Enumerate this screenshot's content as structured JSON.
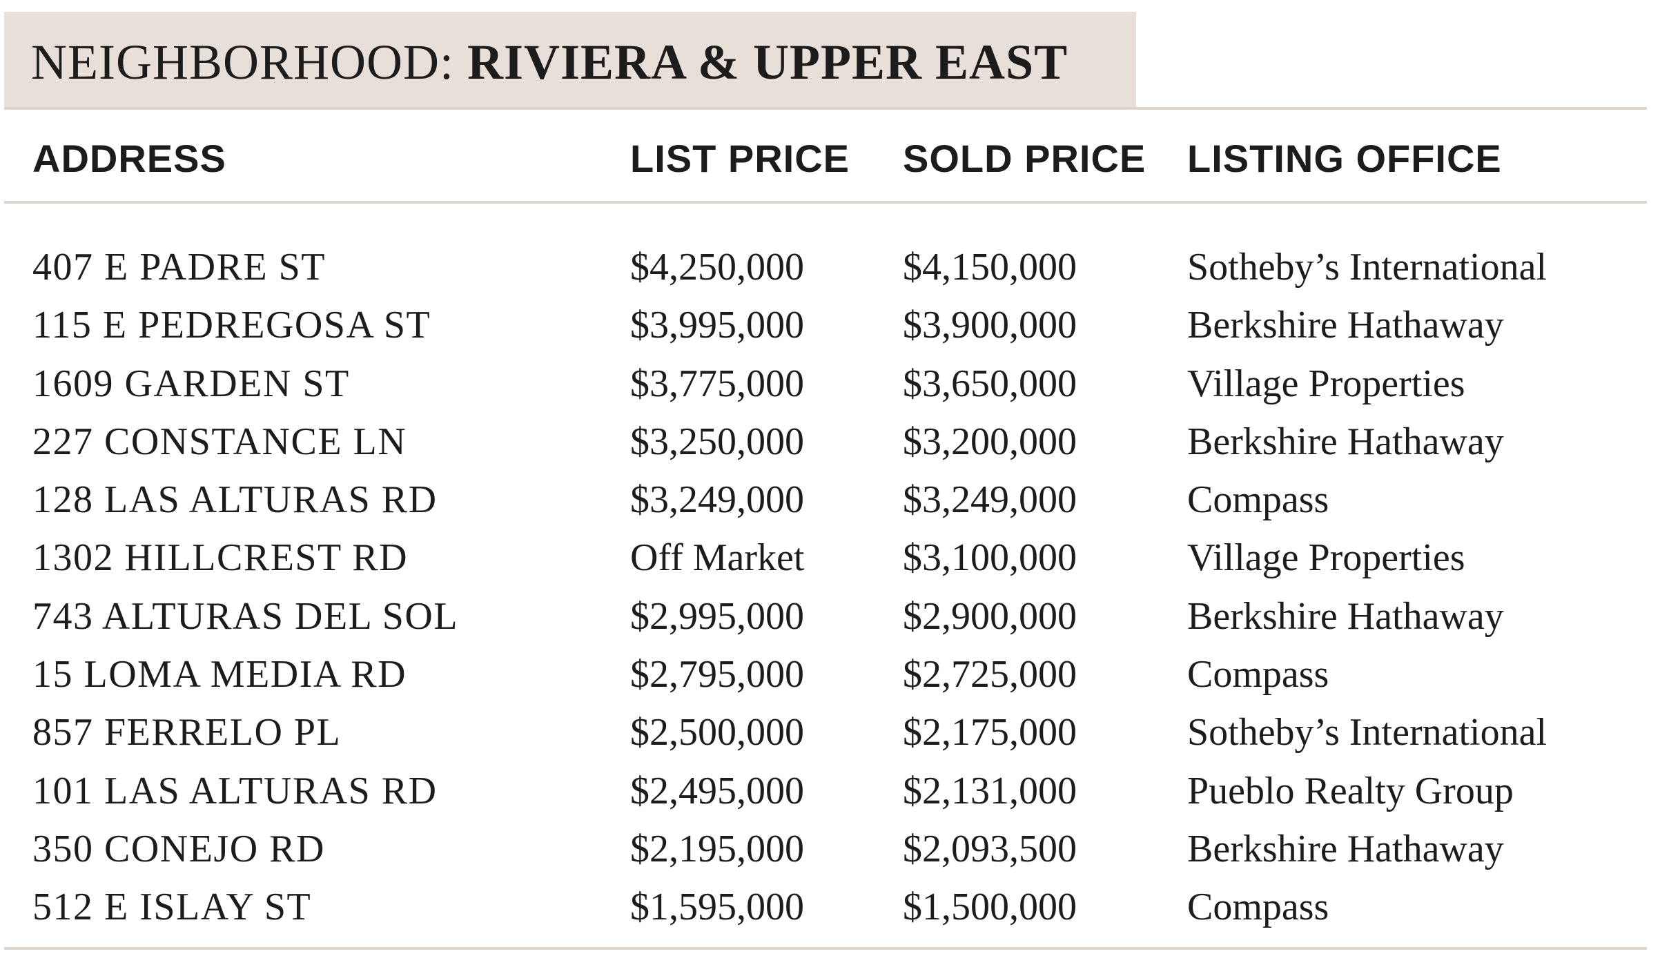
{
  "title": {
    "prefix": "NEIGHBORHOOD: ",
    "name": "RIVIERA & UPPER EAST"
  },
  "columns": {
    "address": "ADDRESS",
    "list_price": "LIST PRICE",
    "sold_price": "SOLD PRICE",
    "listing_office": "LISTING OFFICE"
  },
  "rows": [
    {
      "address": "407 E PADRE ST",
      "list_price": "$4,250,000",
      "sold_price": "$4,150,000",
      "listing_office": "Sotheby’s International"
    },
    {
      "address": "115 E PEDREGOSA ST",
      "list_price": "$3,995,000",
      "sold_price": "$3,900,000",
      "listing_office": "Berkshire Hathaway"
    },
    {
      "address": "1609 GARDEN ST",
      "list_price": "$3,775,000",
      "sold_price": "$3,650,000",
      "listing_office": "Village Properties"
    },
    {
      "address": "227 CONSTANCE LN",
      "list_price": "$3,250,000",
      "sold_price": "$3,200,000",
      "listing_office": "Berkshire Hathaway"
    },
    {
      "address": "128 LAS ALTURAS RD",
      "list_price": "$3,249,000",
      "sold_price": "$3,249,000",
      "listing_office": "Compass"
    },
    {
      "address": "1302 HILLCREST RD",
      "list_price": "Off Market",
      "sold_price": "$3,100,000",
      "listing_office": "Village Properties"
    },
    {
      "address": "743 ALTURAS DEL SOL",
      "list_price": "$2,995,000",
      "sold_price": "$2,900,000",
      "listing_office": "Berkshire Hathaway"
    },
    {
      "address": "15 LOMA MEDIA RD",
      "list_price": "$2,795,000",
      "sold_price": "$2,725,000",
      "listing_office": "Compass"
    },
    {
      "address": "857 FERRELO PL",
      "list_price": "$2,500,000",
      "sold_price": "$2,175,000",
      "listing_office": "Sotheby’s International"
    },
    {
      "address": "101 LAS ALTURAS RD",
      "list_price": "$2,495,000",
      "sold_price": "$2,131,000",
      "listing_office": "Pueblo Realty Group"
    },
    {
      "address": "350 CONEJO RD",
      "list_price": "$2,195,000",
      "sold_price": "$2,093,500",
      "listing_office": "Berkshire Hathaway"
    },
    {
      "address": "512 E ISLAY ST",
      "list_price": "$1,595,000",
      "sold_price": "$1,500,000",
      "listing_office": "Compass"
    }
  ]
}
